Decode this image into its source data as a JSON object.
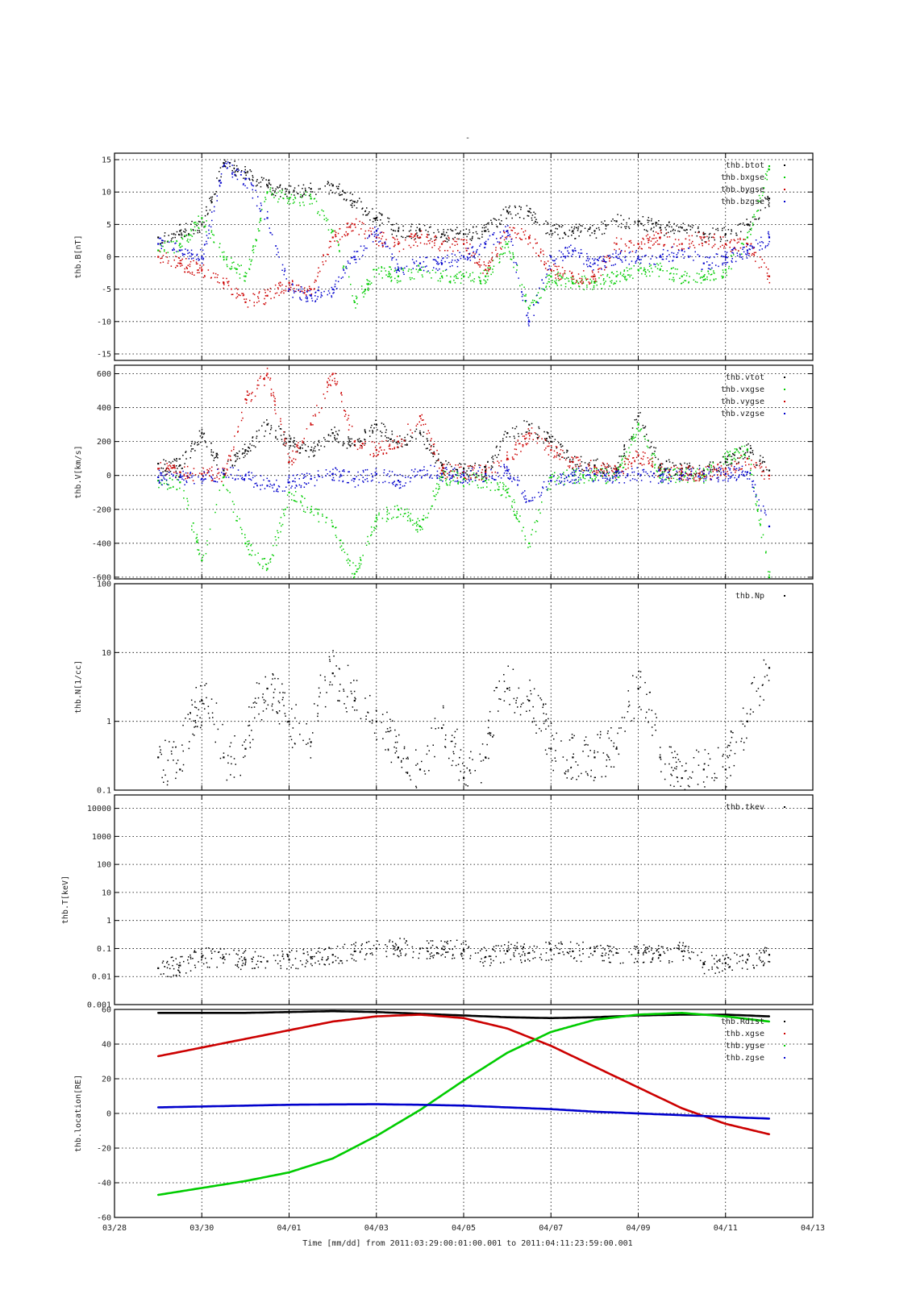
{
  "figure": {
    "title": "-",
    "xlabel": "Time [mm/dd]  from 2011:03:29:00:01:00.001  to  2011:04:11:23:59:00.001"
  },
  "colors": {
    "black": "#000000",
    "green": "#00cc00",
    "red": "#cc0000",
    "blue": "#0000cc"
  },
  "chart_data": [
    {
      "type": "scatter",
      "ylabel": "thb.B[nT]",
      "yscale": "linear",
      "ylim": [
        -16,
        16
      ],
      "yticks": [
        -15,
        -10,
        -5,
        0,
        5,
        10,
        15
      ],
      "ytick_labels": [
        "-15",
        "-10",
        "-5",
        "0",
        "5",
        "10",
        "15"
      ],
      "grid": true,
      "legend": "top-right",
      "series": [
        {
          "name": "thb.btot",
          "color": "#000000",
          "x": [
            1.0,
            1.5,
            2.0,
            2.5,
            3.0,
            3.5,
            4.0,
            4.5,
            5.0,
            5.5,
            6.0,
            6.5,
            7.0,
            7.5,
            8.0,
            8.5,
            9.0,
            9.5,
            10.0,
            10.5,
            11.0,
            11.5,
            12.0,
            12.5,
            13.0,
            13.5,
            14.0,
            14.5,
            15.0
          ],
          "y": [
            3,
            4,
            5,
            14.5,
            13,
            11,
            10,
            10.5,
            11,
            8.5,
            6,
            4,
            4,
            3.5,
            3.5,
            4,
            7,
            7,
            4,
            4,
            4,
            5.5,
            5.5,
            4.5,
            4.5,
            3.5,
            3.5,
            5,
            9
          ]
        },
        {
          "name": "thb.bxgse",
          "color": "#00cc00",
          "x": [
            1.0,
            1.5,
            2.0,
            2.5,
            3.0,
            3.5,
            4.0,
            4.5,
            5.0,
            5.5,
            6.0,
            6.5,
            7.0,
            7.5,
            8.0,
            8.5,
            9.0,
            9.5,
            10.0,
            10.5,
            11.0,
            11.5,
            12.0,
            12.5,
            13.0,
            13.5,
            14.0,
            14.5,
            15.0
          ],
          "y": [
            1,
            2,
            6,
            0,
            -3,
            10,
            9,
            9,
            4,
            -7,
            -2,
            -3,
            -2,
            -3,
            -3,
            -3,
            2,
            -8,
            -3,
            -4,
            -4,
            -3,
            -2,
            -2,
            -3,
            -3,
            -2,
            3,
            14
          ]
        },
        {
          "name": "thb.bygse",
          "color": "#cc0000",
          "x": [
            1.0,
            1.5,
            2.0,
            2.5,
            3.0,
            3.5,
            4.0,
            4.5,
            5.0,
            5.5,
            6.0,
            6.5,
            7.0,
            7.5,
            8.0,
            8.5,
            9.0,
            9.5,
            10.0,
            10.5,
            11.0,
            11.5,
            12.0,
            12.5,
            13.0,
            13.5,
            14.0,
            14.5,
            15.0
          ],
          "y": [
            0,
            -1,
            -2,
            -4,
            -7,
            -6,
            -4,
            -5,
            3,
            5,
            3,
            2,
            3,
            2,
            2,
            -2,
            4,
            3,
            -2,
            -3,
            -3,
            2,
            2,
            3,
            2,
            3,
            2,
            2,
            -3
          ]
        },
        {
          "name": "thb.bzgse",
          "color": "#0000cc",
          "x": [
            1.0,
            1.5,
            2.0,
            2.5,
            3.0,
            3.5,
            4.0,
            4.5,
            5.0,
            5.5,
            6.0,
            6.5,
            7.0,
            7.5,
            8.0,
            8.5,
            9.0,
            9.5,
            10.0,
            10.5,
            11.0,
            11.5,
            12.0,
            12.5,
            13.0,
            13.5,
            14.0,
            14.5,
            15.0
          ],
          "y": [
            2,
            1,
            0,
            14,
            12,
            6,
            -5,
            -6,
            -5,
            0,
            4,
            -2,
            -1,
            -1,
            0,
            2,
            4,
            -10,
            0,
            1,
            -1,
            0,
            0,
            0,
            1,
            -1,
            0,
            1,
            3
          ]
        }
      ]
    },
    {
      "type": "scatter",
      "ylabel": "thb.V[km/s]",
      "yscale": "linear",
      "ylim": [
        -610,
        650
      ],
      "yticks": [
        -600,
        -400,
        -200,
        0,
        200,
        400,
        600
      ],
      "ytick_labels": [
        "-600",
        "-400",
        "-200",
        "0",
        "200",
        "400",
        "600"
      ],
      "grid": true,
      "legend": "top-right",
      "series": [
        {
          "name": "thb.vtot",
          "color": "#000000",
          "x": [
            1.0,
            1.5,
            2.0,
            2.5,
            3.0,
            3.5,
            4.0,
            4.5,
            5.0,
            5.5,
            6.0,
            6.5,
            7.0,
            7.5,
            8.0,
            8.5,
            9.0,
            9.5,
            10.0,
            10.5,
            11.0,
            11.5,
            12.0,
            12.5,
            13.0,
            13.5,
            14.0,
            14.5,
            15.0
          ],
          "y": [
            70,
            60,
            250,
            30,
            150,
            300,
            200,
            150,
            250,
            180,
            300,
            200,
            250,
            60,
            40,
            30,
            250,
            300,
            200,
            80,
            60,
            40,
            350,
            60,
            40,
            30,
            80,
            150,
            30
          ]
        },
        {
          "name": "thb.vxgse",
          "color": "#00cc00",
          "x": [
            1.0,
            1.5,
            2.0,
            2.5,
            3.0,
            3.5,
            4.0,
            4.5,
            5.0,
            5.5,
            6.0,
            6.5,
            7.0,
            7.5,
            8.0,
            8.5,
            9.0,
            9.5,
            10.0,
            10.5,
            11.0,
            11.5,
            12.0,
            12.5,
            13.0,
            13.5,
            14.0,
            14.5,
            15.0
          ],
          "y": [
            -30,
            -40,
            -500,
            -10,
            -400,
            -550,
            -100,
            -200,
            -300,
            -580,
            -250,
            -200,
            -300,
            -10,
            -20,
            -30,
            -100,
            -400,
            -10,
            0,
            0,
            0,
            300,
            0,
            0,
            0,
            100,
            150,
            -600
          ]
        },
        {
          "name": "thb.vygse",
          "color": "#cc0000",
          "x": [
            1.0,
            1.5,
            2.0,
            2.5,
            3.0,
            3.5,
            4.0,
            4.5,
            5.0,
            5.5,
            6.0,
            6.5,
            7.0,
            7.5,
            8.0,
            8.5,
            9.0,
            9.5,
            10.0,
            10.5,
            11.0,
            11.5,
            12.0,
            12.5,
            13.0,
            13.5,
            14.0,
            14.5,
            15.0
          ],
          "y": [
            40,
            20,
            10,
            10,
            450,
            600,
            80,
            300,
            600,
            200,
            150,
            200,
            350,
            30,
            20,
            20,
            100,
            250,
            150,
            80,
            50,
            30,
            120,
            30,
            20,
            10,
            40,
            100,
            0
          ]
        },
        {
          "name": "thb.vzgse",
          "color": "#0000cc",
          "x": [
            1.0,
            1.5,
            2.0,
            2.5,
            3.0,
            3.5,
            4.0,
            4.5,
            5.0,
            5.5,
            6.0,
            6.5,
            7.0,
            7.5,
            8.0,
            8.5,
            9.0,
            9.5,
            10.0,
            10.5,
            11.0,
            11.5,
            12.0,
            12.5,
            13.0,
            13.5,
            14.0,
            14.5,
            15.0
          ],
          "y": [
            -10,
            -10,
            -20,
            10,
            0,
            -60,
            -40,
            -20,
            10,
            -20,
            10,
            -30,
            30,
            10,
            0,
            10,
            30,
            -150,
            -30,
            0,
            10,
            0,
            10,
            0,
            0,
            10,
            10,
            20,
            -300
          ]
        }
      ]
    },
    {
      "type": "scatter",
      "ylabel": "thb.N[1/cc]",
      "yscale": "log",
      "ylim": [
        0.1,
        100
      ],
      "yticks": [
        0.1,
        1,
        10,
        100
      ],
      "ytick_labels": [
        "0.1",
        "1",
        "10",
        "100"
      ],
      "grid": true,
      "legend": "top-right",
      "series": [
        {
          "name": "thb.Np",
          "color": "#000000",
          "x": [
            1.0,
            1.5,
            2.0,
            2.5,
            3.0,
            3.5,
            4.0,
            4.5,
            5.0,
            5.5,
            6.0,
            6.5,
            7.0,
            7.5,
            8.0,
            8.5,
            9.0,
            9.5,
            10.0,
            10.5,
            11.0,
            11.5,
            12.0,
            12.5,
            13.0,
            13.5,
            14.0,
            14.5,
            15.0
          ],
          "y": [
            0.3,
            0.2,
            2,
            0.3,
            0.4,
            3,
            1,
            0.5,
            5,
            2,
            1,
            0.3,
            0.2,
            0.8,
            0.15,
            0.3,
            3,
            2,
            0.4,
            0.3,
            0.3,
            0.4,
            3,
            0.3,
            0.15,
            0.2,
            0.2,
            1,
            6
          ]
        }
      ]
    },
    {
      "type": "scatter",
      "ylabel": "thb.T[keV]",
      "yscale": "log",
      "ylim": [
        0.001,
        30000
      ],
      "yticks": [
        0.001,
        0.01,
        0.1,
        1,
        10,
        100,
        1000,
        10000
      ],
      "ytick_labels": [
        "0.001",
        "0.01",
        "0.1",
        "1",
        "10",
        "100",
        "1000",
        "10000"
      ],
      "grid": true,
      "legend": "top-right",
      "series": [
        {
          "name": "thb.tkev",
          "color": "#000000",
          "x": [
            1.0,
            1.5,
            2.0,
            2.5,
            3.0,
            3.5,
            4.0,
            4.5,
            5.0,
            5.5,
            6.0,
            6.5,
            7.0,
            7.5,
            8.0,
            8.5,
            9.0,
            9.5,
            10.0,
            10.5,
            11.0,
            11.5,
            12.0,
            12.5,
            13.0,
            13.5,
            14.0,
            14.5,
            15.0
          ],
          "y": [
            0.02,
            0.025,
            0.05,
            0.05,
            0.04,
            0.035,
            0.04,
            0.05,
            0.06,
            0.08,
            0.1,
            0.11,
            0.1,
            0.1,
            0.09,
            0.05,
            0.08,
            0.07,
            0.09,
            0.08,
            0.08,
            0.07,
            0.07,
            0.06,
            0.08,
            0.03,
            0.03,
            0.04,
            0.06
          ]
        }
      ]
    },
    {
      "type": "line",
      "ylabel": "thb.location[RE]",
      "yscale": "linear",
      "ylim": [
        -60,
        60
      ],
      "yticks": [
        -60,
        -40,
        -20,
        0,
        20,
        40,
        60
      ],
      "ytick_labels": [
        "-60",
        "-40",
        "-20",
        "0",
        "20",
        "40",
        "60"
      ],
      "grid": true,
      "legend": "top-right",
      "series": [
        {
          "name": "thb.Rdist",
          "color": "#000000",
          "x": [
            1,
            2,
            3,
            4,
            5,
            6,
            7,
            8,
            9,
            10,
            11,
            12,
            13,
            14,
            15
          ],
          "y": [
            58,
            58,
            58,
            58.5,
            59,
            58.5,
            57.5,
            56.5,
            55.5,
            55,
            55.5,
            56.5,
            57,
            57,
            56
          ]
        },
        {
          "name": "thb.xgse",
          "color": "#cc0000",
          "x": [
            1,
            2,
            3,
            4,
            5,
            6,
            7,
            8,
            9,
            10,
            11,
            12,
            13,
            14,
            15
          ],
          "y": [
            33,
            38,
            43,
            48,
            53,
            56,
            57,
            55,
            49,
            39,
            27,
            15,
            3,
            -6,
            -12
          ]
        },
        {
          "name": "thb.ygse",
          "color": "#00cc00",
          "x": [
            1,
            2,
            3,
            4,
            5,
            6,
            7,
            8,
            9,
            10,
            11,
            12,
            13,
            14,
            15
          ],
          "y": [
            -47,
            -43,
            -39,
            -34,
            -26,
            -13,
            2,
            19,
            35,
            47,
            54,
            57,
            58,
            56,
            53
          ]
        },
        {
          "name": "thb.zgse",
          "color": "#0000cc",
          "x": [
            1,
            2,
            3,
            4,
            5,
            6,
            7,
            8,
            9,
            10,
            11,
            12,
            13,
            14,
            15
          ],
          "y": [
            3.5,
            4,
            4.5,
            5,
            5.2,
            5.3,
            5,
            4.5,
            3.5,
            2.5,
            1,
            0,
            -1,
            -2,
            -3
          ]
        }
      ]
    }
  ],
  "xaxis": {
    "xlim": [
      0,
      16
    ],
    "ticks": [
      0,
      2,
      4,
      6,
      8,
      10,
      12,
      14,
      16
    ],
    "tick_labels": [
      "03/28",
      "03/30",
      "04/01",
      "04/03",
      "04/05",
      "04/07",
      "04/09",
      "04/11",
      "04/13"
    ]
  }
}
